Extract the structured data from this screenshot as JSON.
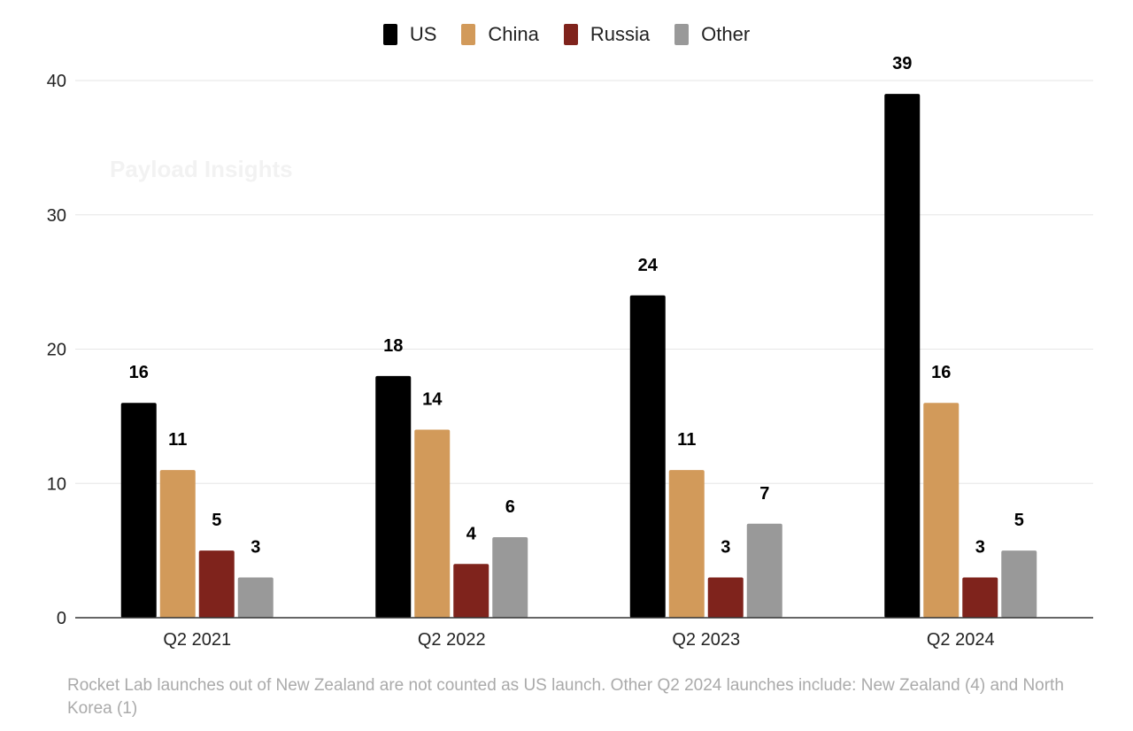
{
  "chart_data": {
    "type": "bar",
    "categories": [
      "Q2 2021",
      "Q2 2022",
      "Q2 2023",
      "Q2 2024"
    ],
    "series": [
      {
        "name": "US",
        "color": "#000000",
        "values": [
          16,
          18,
          24,
          39
        ]
      },
      {
        "name": "China",
        "color": "#d29a5a",
        "values": [
          11,
          14,
          11,
          16
        ]
      },
      {
        "name": "Russia",
        "color": "#7f231c",
        "values": [
          5,
          4,
          3,
          3
        ]
      },
      {
        "name": "Other",
        "color": "#999999",
        "values": [
          3,
          6,
          7,
          5
        ]
      }
    ],
    "ylim": [
      0,
      40
    ],
    "yticks": [
      0,
      10,
      20,
      30,
      40
    ],
    "grid": true,
    "legend": "top-center",
    "data_labels": true
  },
  "watermark": "Payload Insights",
  "footnote": "Rocket Lab launches out of New Zealand are not counted as US launch. Other Q2 2024 launches include: New Zealand (4) and North Korea (1)"
}
